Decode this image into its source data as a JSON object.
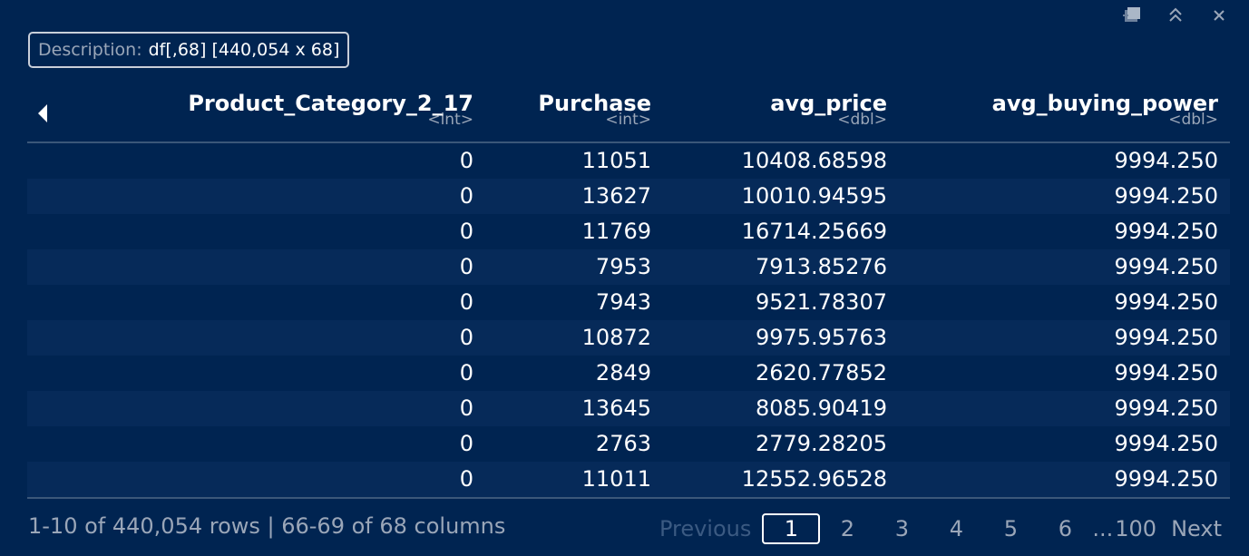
{
  "window": {
    "icons": [
      "open-in-new-window-icon",
      "collapse-up-icon",
      "close-icon"
    ]
  },
  "description": {
    "label": "Description:",
    "value": "df[,68] [440,054 x 68]"
  },
  "table": {
    "columns": [
      {
        "name": "Product_Category_2_17",
        "type": "<int>"
      },
      {
        "name": "Purchase",
        "type": "<int>"
      },
      {
        "name": "avg_price",
        "type": "<dbl>"
      },
      {
        "name": "avg_buying_power",
        "type": "<dbl>"
      }
    ],
    "rows": [
      [
        "0",
        "11051",
        "10408.68598",
        "9994.250"
      ],
      [
        "0",
        "13627",
        "10010.94595",
        "9994.250"
      ],
      [
        "0",
        "11769",
        "16714.25669",
        "9994.250"
      ],
      [
        "0",
        "7953",
        "7913.85276",
        "9994.250"
      ],
      [
        "0",
        "7943",
        "9521.78307",
        "9994.250"
      ],
      [
        "0",
        "10872",
        "9975.95763",
        "9994.250"
      ],
      [
        "0",
        "2849",
        "2620.77852",
        "9994.250"
      ],
      [
        "0",
        "13645",
        "8085.90419",
        "9994.250"
      ],
      [
        "0",
        "2763",
        "2779.28205",
        "9994.250"
      ],
      [
        "0",
        "11011",
        "12552.96528",
        "9994.250"
      ]
    ]
  },
  "footer": {
    "info": "1-10 of 440,054 rows | 66-69 of 68 columns",
    "previous": "Previous",
    "pages": [
      "1",
      "2",
      "3",
      "4",
      "5",
      "6"
    ],
    "current_page": "1",
    "ellipsis": "...",
    "last_page": "100",
    "next": "Next"
  }
}
